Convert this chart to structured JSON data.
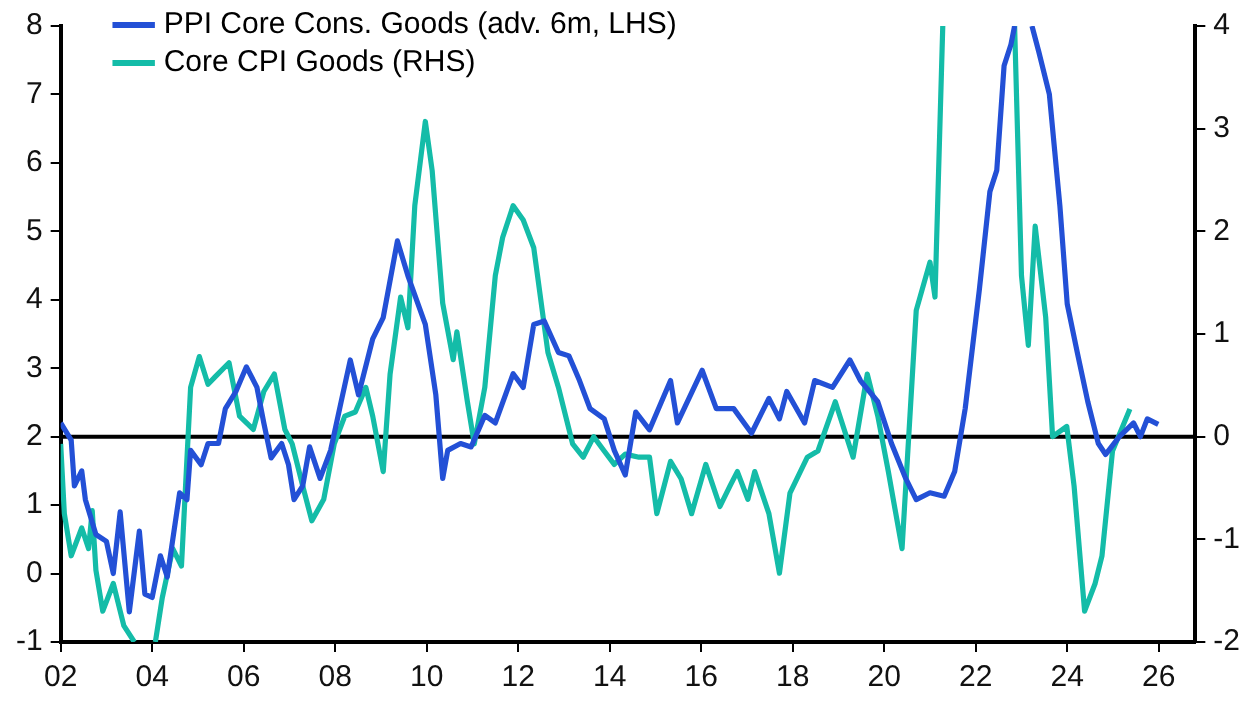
{
  "chart_data": {
    "type": "line",
    "xlim": [
      2002,
      2026.8
    ],
    "xticks": [
      {
        "value": 2002,
        "label": "02"
      },
      {
        "value": 2004,
        "label": "04"
      },
      {
        "value": 2006,
        "label": "06"
      },
      {
        "value": 2008,
        "label": "08"
      },
      {
        "value": 2010,
        "label": "10"
      },
      {
        "value": 2012,
        "label": "12"
      },
      {
        "value": 2014,
        "label": "14"
      },
      {
        "value": 2016,
        "label": "16"
      },
      {
        "value": 2018,
        "label": "18"
      },
      {
        "value": 2020,
        "label": "20"
      },
      {
        "value": 2022,
        "label": "22"
      },
      {
        "value": 2024,
        "label": "24"
      },
      {
        "value": 2026,
        "label": "26"
      }
    ],
    "ylim": [
      -1,
      8
    ],
    "yticks": [
      -1,
      0,
      1,
      2,
      3,
      4,
      5,
      6,
      7,
      8
    ],
    "y2lim": [
      -2,
      4
    ],
    "y2ticks": [
      -2,
      -1,
      0,
      1,
      2,
      3,
      4
    ],
    "grid": false,
    "legend": "top left",
    "marker": "none",
    "line_style": "solid",
    "ref_lines": [
      {
        "axis": "y",
        "value": 2,
        "color": "#000000"
      }
    ],
    "series": [
      {
        "name": "PPI Core Cons. Goods (adv. 6m, LHS)",
        "color": "#2350d6",
        "x": [
          2002.0,
          2002.23,
          2002.3,
          2002.46,
          2002.54,
          2002.77,
          2003.0,
          2003.15,
          2003.3,
          2003.5,
          2003.72,
          2003.84,
          2004.0,
          2004.18,
          2004.33,
          2004.6,
          2004.76,
          2004.84,
          2005.07,
          2005.22,
          2005.45,
          2005.6,
          2005.83,
          2006.06,
          2006.29,
          2006.44,
          2006.6,
          2006.83,
          2006.98,
          2007.1,
          2007.29,
          2007.44,
          2007.67,
          2007.9,
          2008.13,
          2008.33,
          2008.51,
          2008.82,
          2009.05,
          2009.36,
          2009.59,
          2009.97,
          2010.2,
          2010.35,
          2010.46,
          2010.74,
          2010.97,
          2011.27,
          2011.5,
          2011.89,
          2012.11,
          2012.34,
          2012.57,
          2012.88,
          2013.11,
          2013.34,
          2013.57,
          2013.88,
          2014.1,
          2014.34,
          2014.57,
          2014.87,
          2015.33,
          2015.48,
          2016.02,
          2016.33,
          2016.71,
          2017.1,
          2017.48,
          2017.71,
          2017.87,
          2018.26,
          2018.48,
          2018.87,
          2019.25,
          2019.48,
          2019.86,
          2020.16,
          2020.47,
          2020.7,
          2021.0,
          2021.31,
          2021.54,
          2021.77,
          2022.08,
          2022.31,
          2022.46,
          2022.62,
          2022.77,
          2022.85,
          2023.0,
          2023.23,
          2023.38,
          2023.61,
          2023.84,
          2024.0,
          2024.22,
          2024.45,
          2024.68,
          2024.84,
          2025.14,
          2025.45,
          2025.6,
          2025.75,
          2025.99
        ],
        "values": [
          2.2,
          1.95,
          1.28,
          1.5,
          1.08,
          0.57,
          0.47,
          0.0,
          0.9,
          -0.56,
          0.62,
          -0.3,
          -0.35,
          0.26,
          -0.05,
          1.18,
          1.08,
          1.8,
          1.59,
          1.9,
          1.9,
          2.41,
          2.66,
          3.02,
          2.72,
          2.2,
          1.69,
          1.9,
          1.59,
          1.08,
          1.28,
          1.85,
          1.39,
          1.8,
          2.51,
          3.12,
          2.61,
          3.43,
          3.74,
          4.86,
          4.35,
          3.64,
          2.61,
          1.39,
          1.8,
          1.9,
          1.85,
          2.31,
          2.2,
          2.92,
          2.72,
          3.64,
          3.69,
          3.23,
          3.18,
          2.82,
          2.41,
          2.26,
          1.8,
          1.44,
          2.36,
          2.1,
          2.82,
          2.2,
          2.97,
          2.41,
          2.41,
          2.05,
          2.56,
          2.26,
          2.66,
          2.2,
          2.82,
          2.72,
          3.12,
          2.82,
          2.51,
          1.9,
          1.39,
          1.08,
          1.18,
          1.13,
          1.49,
          2.41,
          4.15,
          5.58,
          5.89,
          7.42,
          7.73,
          8.0,
          null,
          8.0,
          7.62,
          7.0,
          5.37,
          3.94,
          3.23,
          2.51,
          1.9,
          1.74,
          2.0,
          2.2,
          2.0,
          2.26,
          2.18
        ]
      },
      {
        "name": "Core CPI Goods (RHS)",
        "color": "#14bca8",
        "axis": "y2",
        "x": [
          2002.0,
          2002.08,
          2002.23,
          2002.46,
          2002.61,
          2002.69,
          2002.77,
          2002.92,
          2003.15,
          2003.38,
          2003.61,
          2003.8,
          2004.07,
          2004.22,
          2004.45,
          2004.64,
          2004.84,
          2005.03,
          2005.22,
          2005.37,
          2005.68,
          2005.91,
          2006.21,
          2006.44,
          2006.67,
          2006.9,
          2007.06,
          2007.29,
          2007.49,
          2007.75,
          2007.98,
          2008.21,
          2008.44,
          2008.67,
          2008.82,
          2009.05,
          2009.2,
          2009.43,
          2009.59,
          2009.74,
          2009.97,
          2010.12,
          2010.35,
          2010.58,
          2010.66,
          2010.89,
          2011.04,
          2011.27,
          2011.5,
          2011.66,
          2011.89,
          2012.11,
          2012.34,
          2012.65,
          2012.88,
          2013.19,
          2013.42,
          2013.65,
          2013.88,
          2014.1,
          2014.34,
          2014.64,
          2014.87,
          2015.03,
          2015.33,
          2015.56,
          2015.79,
          2016.1,
          2016.41,
          2016.63,
          2016.79,
          2017.02,
          2017.17,
          2017.48,
          2017.71,
          2017.94,
          2018.32,
          2018.55,
          2018.93,
          2019.32,
          2019.63,
          2019.86,
          2020.09,
          2020.39,
          2020.7,
          2021.0,
          2021.11,
          2021.28,
          2022.0,
          2022.85,
          2023.0,
          2023.15,
          2023.3,
          2023.53,
          2023.68,
          2023.99,
          2024.15,
          2024.38,
          2024.61,
          2024.76,
          2024.99,
          2025.37
        ],
        "values": [
          -0.07,
          -0.75,
          -1.16,
          -0.89,
          -1.09,
          -0.72,
          -1.3,
          -1.7,
          -1.43,
          -1.84,
          -2.0,
          null,
          -2.0,
          -1.57,
          -1.09,
          -1.26,
          0.48,
          0.78,
          0.51,
          0.58,
          0.72,
          0.2,
          0.07,
          0.44,
          0.61,
          0.07,
          -0.07,
          -0.48,
          -0.82,
          -0.61,
          -0.07,
          0.2,
          0.24,
          0.48,
          0.2,
          -0.34,
          0.61,
          1.36,
          1.06,
          2.25,
          3.07,
          2.59,
          1.3,
          0.75,
          1.02,
          0.34,
          -0.07,
          0.48,
          1.57,
          1.94,
          2.25,
          2.11,
          1.84,
          0.82,
          0.48,
          -0.07,
          -0.2,
          0.0,
          -0.14,
          -0.27,
          -0.17,
          -0.2,
          -0.2,
          -0.75,
          -0.24,
          -0.41,
          -0.75,
          -0.27,
          -0.68,
          -0.48,
          -0.34,
          -0.61,
          -0.34,
          -0.75,
          -1.33,
          -0.55,
          -0.2,
          -0.14,
          0.34,
          -0.2,
          0.61,
          0.2,
          -0.34,
          -1.09,
          1.23,
          1.7,
          1.36,
          4.0,
          null,
          4.0,
          1.57,
          0.89,
          2.05,
          1.16,
          0.0,
          0.1,
          -0.48,
          -1.7,
          -1.43,
          -1.16,
          -0.14,
          0.27
        ]
      }
    ]
  }
}
